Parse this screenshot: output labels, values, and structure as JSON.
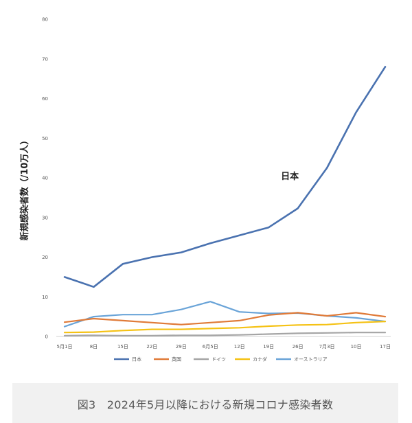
{
  "caption": "図3　2024年5月以降における新規コロナ感染者数",
  "chart_data": {
    "type": "line",
    "title": "",
    "xlabel": "",
    "ylabel": "新規感染者数（/10万人）",
    "ylim": [
      0,
      80
    ],
    "yticks": [
      "0",
      "10",
      "20",
      "30",
      "40",
      "50",
      "60",
      "70",
      "80"
    ],
    "categories": [
      "5月1日",
      "8日",
      "15日",
      "22日",
      "29日",
      "6月5日",
      "12日",
      "19日",
      "26日",
      "7月3日",
      "10日",
      "17日"
    ],
    "grid": false,
    "legend": "bottom",
    "annotation": "日本",
    "series": [
      {
        "name": "日本",
        "color": "#4a72b0",
        "values": [
          15,
          12.5,
          18.3,
          20,
          21.2,
          23.5,
          25.5,
          27.5,
          32.3,
          42.5,
          56.5,
          68
        ]
      },
      {
        "name": "英国",
        "color": "#e07b39",
        "values": [
          3.6,
          4.5,
          4.0,
          3.5,
          3.0,
          3.5,
          4.0,
          5.4,
          6.0,
          5.2,
          6.0,
          5.0
        ]
      },
      {
        "name": "ドイツ",
        "color": "#a5a5a5",
        "values": [
          0.2,
          0.3,
          0.2,
          0.2,
          0.3,
          0.3,
          0.4,
          0.6,
          0.8,
          0.9,
          1.0,
          1.0
        ]
      },
      {
        "name": "カナダ",
        "color": "#f5c215",
        "values": [
          1.0,
          1.1,
          1.5,
          1.8,
          1.8,
          2.0,
          2.2,
          2.6,
          2.9,
          3.0,
          3.5,
          3.8
        ]
      },
      {
        "name": "オーストラリア",
        "color": "#6aa4d8",
        "values": [
          2.5,
          5.0,
          5.5,
          5.5,
          6.8,
          8.8,
          6.2,
          5.8,
          5.9,
          5.2,
          4.7,
          3.8
        ]
      }
    ]
  }
}
